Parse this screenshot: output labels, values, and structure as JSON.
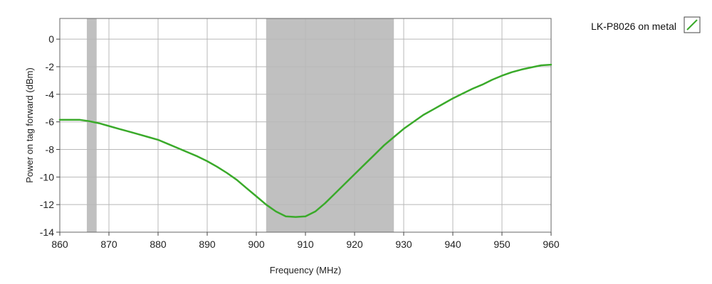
{
  "chart_data": {
    "type": "line",
    "xlabel": "Frequency (MHz)",
    "ylabel": "Power on tag forward (dBm)",
    "xlim": [
      860,
      960
    ],
    "ylim": [
      -14,
      1.5
    ],
    "x_ticks": [
      860,
      870,
      880,
      890,
      900,
      910,
      920,
      930,
      940,
      950,
      960
    ],
    "y_ticks": [
      0,
      -2,
      -4,
      -6,
      -8,
      -10,
      -12,
      -14
    ],
    "grid": true,
    "legend_position": "top-right",
    "shaded_bands": [
      {
        "x_start": 865.5,
        "x_end": 867.5
      },
      {
        "x_start": 902,
        "x_end": 928
      }
    ],
    "series": [
      {
        "name": "LK-P8026 on metal",
        "color": "#3aaa2a",
        "x": [
          860,
          862,
          864,
          866,
          868,
          870,
          872,
          874,
          876,
          878,
          880,
          882,
          884,
          886,
          888,
          890,
          892,
          894,
          896,
          898,
          900,
          902,
          904,
          906,
          908,
          910,
          912,
          914,
          916,
          918,
          920,
          922,
          924,
          926,
          928,
          930,
          932,
          934,
          936,
          938,
          940,
          942,
          944,
          946,
          948,
          950,
          952,
          954,
          956,
          958,
          960
        ],
        "y": [
          -5.85,
          -5.85,
          -5.85,
          -5.95,
          -6.1,
          -6.3,
          -6.5,
          -6.7,
          -6.9,
          -7.1,
          -7.3,
          -7.6,
          -7.9,
          -8.2,
          -8.5,
          -8.85,
          -9.25,
          -9.7,
          -10.2,
          -10.8,
          -11.4,
          -12.0,
          -12.5,
          -12.85,
          -12.9,
          -12.85,
          -12.5,
          -11.9,
          -11.2,
          -10.5,
          -9.8,
          -9.1,
          -8.4,
          -7.7,
          -7.1,
          -6.5,
          -6.0,
          -5.5,
          -5.1,
          -4.7,
          -4.3,
          -3.95,
          -3.6,
          -3.3,
          -2.95,
          -2.65,
          -2.4,
          -2.2,
          -2.05,
          -1.9,
          -1.85
        ]
      }
    ]
  }
}
